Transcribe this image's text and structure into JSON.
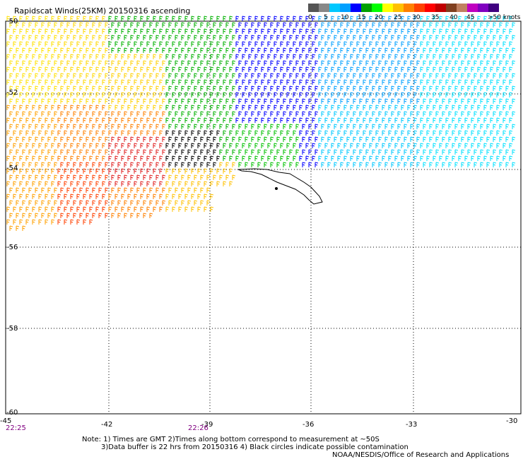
{
  "title": "Rapidscat Winds(25KM) 20150316 ascending",
  "colorbar": {
    "colors": [
      "#555555",
      "#888888",
      "#00c8ff",
      "#00a0ff",
      "#0000ff",
      "#00a000",
      "#00ff00",
      "#ffff00",
      "#ffc000",
      "#ff8000",
      "#ff4000",
      "#ff0000",
      "#c00000",
      "#804020",
      "#c08060",
      "#c000c0",
      "#8000c0",
      "#400080"
    ],
    "labels": [
      "0",
      "5",
      "10",
      "15",
      "20",
      "25",
      "30",
      "35",
      "40",
      "45",
      ">50 knots"
    ]
  },
  "axes": {
    "lon_labels": [
      "-45",
      "-42",
      "-39",
      "-36",
      "-33",
      "-30"
    ],
    "lat_labels": [
      "-50",
      "-52",
      "-54",
      "-56",
      "-58",
      "-60"
    ]
  },
  "times": [
    "22:25",
    "22:26"
  ],
  "notes": [
    "Note: 1) Times are GMT 2)Times along bottom correspond to measurement at ~50S",
    "3)Data buffer is 22 hrs from 20150316 4) Black circles indicate possible contamination",
    "NOAA/NESDIS/Office of Research and Applications"
  ]
}
